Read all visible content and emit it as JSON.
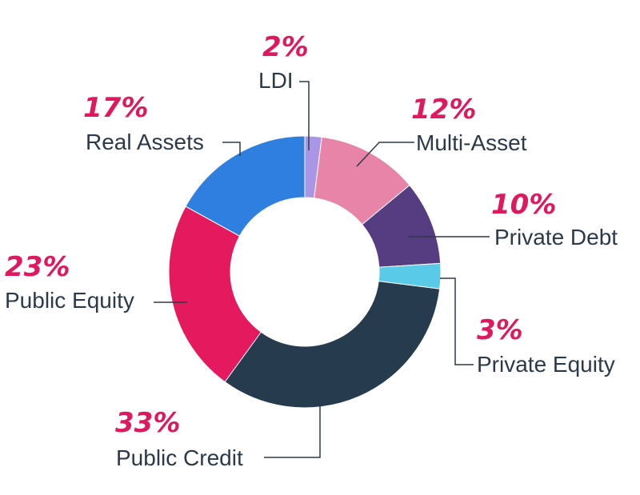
{
  "chart_data": {
    "type": "pie",
    "variant": "donut",
    "title": "",
    "slices": [
      {
        "label": "LDI",
        "value": 2,
        "value_text": "2%",
        "color": "#a996e6"
      },
      {
        "label": "Multi-Asset",
        "value": 12,
        "value_text": "12%",
        "color": "#e784a7"
      },
      {
        "label": "Private Debt",
        "value": 10,
        "value_text": "10%",
        "color": "#563c80"
      },
      {
        "label": "Private Equity",
        "value": 3,
        "value_text": "3%",
        "color": "#59cbe8"
      },
      {
        "label": "Public Credit",
        "value": 33,
        "value_text": "33%",
        "color": "#273b4e"
      },
      {
        "label": "Public Equity",
        "value": 23,
        "value_text": "23%",
        "color": "#e5195e"
      },
      {
        "label": "Real Assets",
        "value": 17,
        "value_text": "17%",
        "color": "#2e7fe0"
      }
    ],
    "colors": {
      "label_text": "#2b3a4a",
      "percent_text": "#e0185e"
    }
  }
}
